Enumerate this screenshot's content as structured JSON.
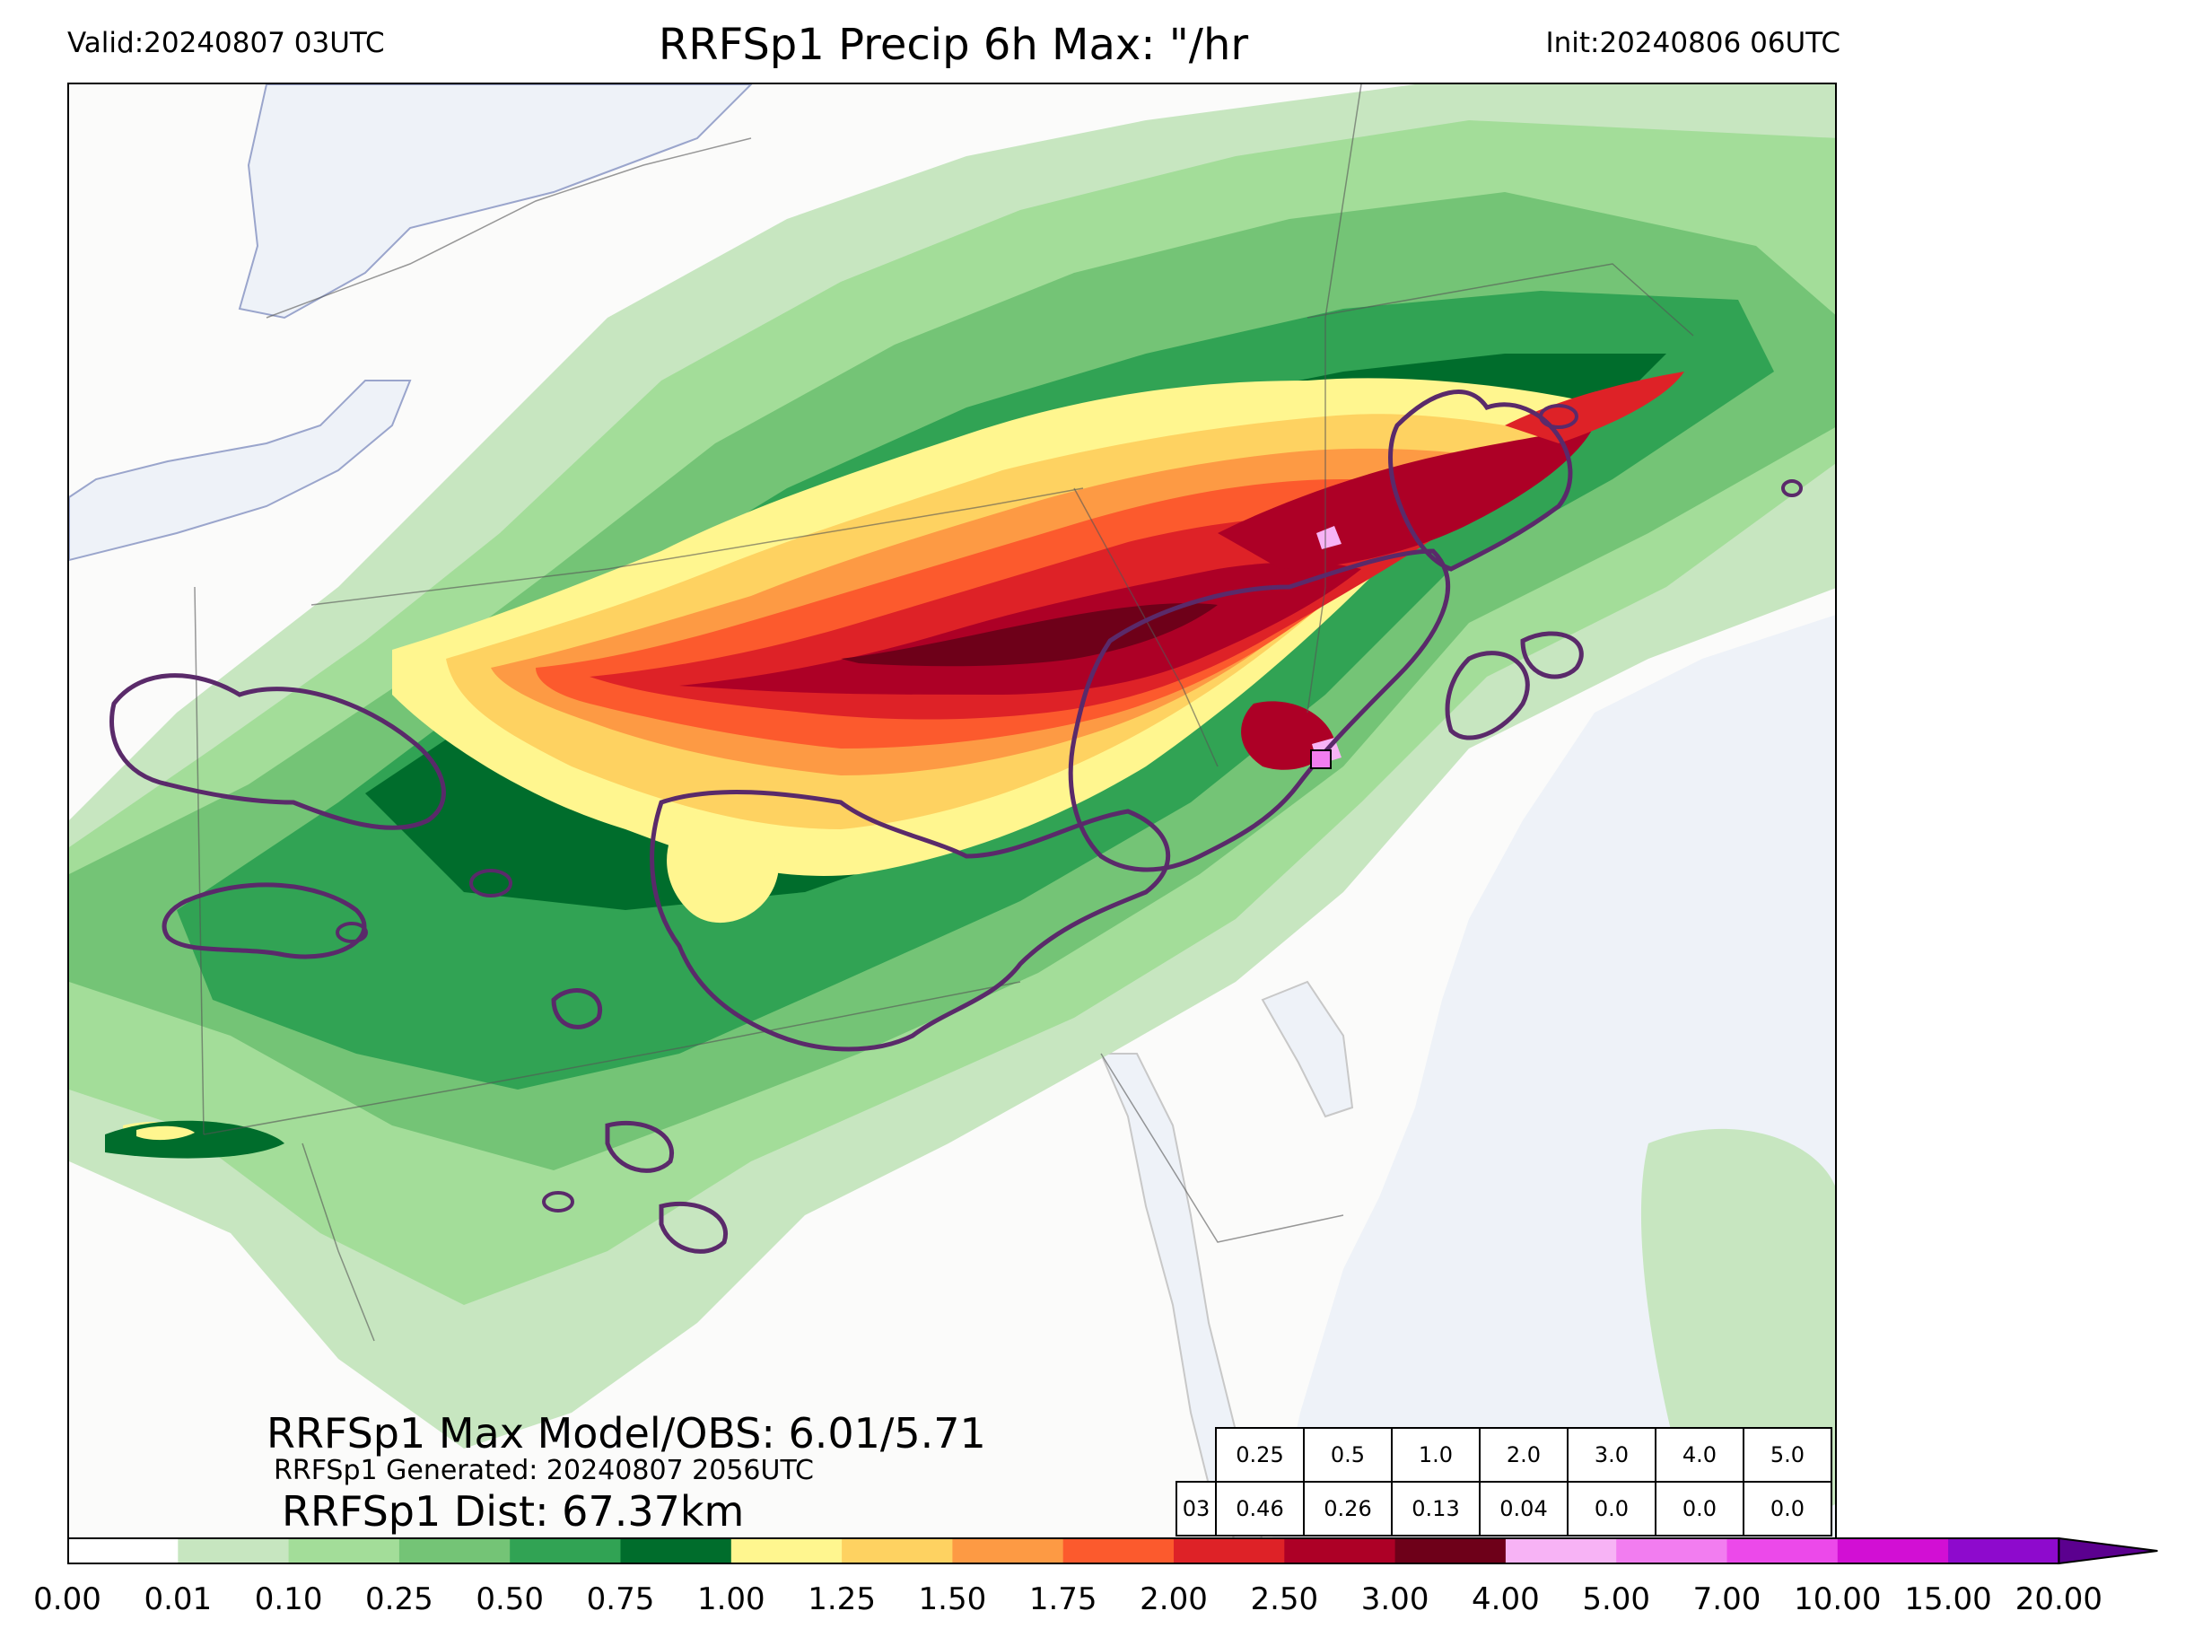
{
  "header": {
    "valid": "Valid:20240807 03UTC",
    "title": "RRFSp1 Precip 6h Max: \"/hr",
    "init": "Init:20240806 06UTC"
  },
  "stats": {
    "max_line": "RRFSp1 Max Model/OBS: 6.01/5.71",
    "generated_line": "RRFSp1 Generated: 20240807 2056UTC",
    "dist_line": "RRFSp1 Dist: 67.37km"
  },
  "threshold_table": {
    "thresholds": [
      "0.25",
      "0.5",
      "1.0",
      "2.0",
      "3.0",
      "4.0",
      "5.0"
    ],
    "row_label": "03",
    "values": [
      "0.46",
      "0.26",
      "0.13",
      "0.04",
      "0.0",
      "0.0",
      "0.0"
    ]
  },
  "colorbar": {
    "ticks": [
      "0.00",
      "0.01",
      "0.10",
      "0.25",
      "0.50",
      "0.75",
      "1.00",
      "1.25",
      "1.50",
      "1.75",
      "2.00",
      "2.50",
      "3.00",
      "4.00",
      "5.00",
      "7.00",
      "10.00",
      "15.00",
      "20.00"
    ],
    "colors": [
      "#ffffff",
      "#c7e6c0",
      "#a3dd99",
      "#74c476",
      "#31a354",
      "#006d2c",
      "#fff68f",
      "#fed261",
      "#fd9a44",
      "#fc5a2d",
      "#de2227",
      "#ad0026",
      "#6e0019",
      "#f7b3f5",
      "#f27df0",
      "#ec49ea",
      "#d20fd4",
      "#8e0acd"
    ],
    "extend_color": "#5b008f"
  },
  "map_colors": {
    "land": "#fbfbfa",
    "water": "#eef2f8",
    "observed_contour": "#5a2a6a"
  }
}
